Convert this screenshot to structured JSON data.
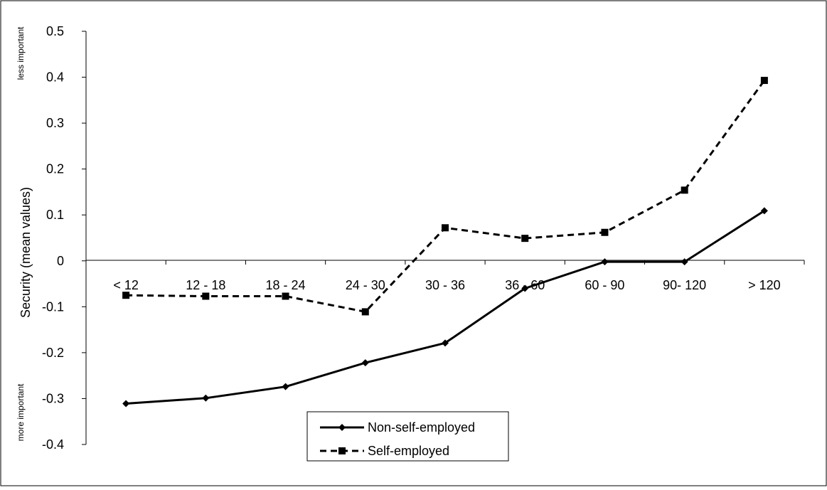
{
  "chart_data": {
    "type": "line",
    "title": "",
    "xlabel": "",
    "ylabel": "Security (mean values)",
    "side_labels": {
      "top": "less important",
      "bottom": "more important"
    },
    "categories": [
      "< 12",
      "12 - 18",
      "18 - 24",
      "24 - 30",
      "30 - 36",
      "36 - 60",
      "60 - 90",
      "90- 120",
      "> 120"
    ],
    "ylim": [
      -0.4,
      0.5
    ],
    "yticks": [
      "0.5",
      "0.4",
      "0.3",
      "0.2",
      "0.1",
      "0",
      "-0.1",
      "-0.2",
      "-0.3",
      "-0.4"
    ],
    "grid": false,
    "legend_position": "bottom-center",
    "series": [
      {
        "name": "Non-self-employed",
        "style": "solid",
        "marker": "diamond",
        "color": "#000000",
        "values": [
          -0.311,
          -0.299,
          -0.274,
          -0.222,
          -0.179,
          -0.06,
          -0.002,
          -0.002,
          0.109
        ]
      },
      {
        "name": "Self-employed",
        "style": "dashed",
        "marker": "square",
        "color": "#000000",
        "values": [
          -0.075,
          -0.077,
          -0.077,
          -0.111,
          0.072,
          0.049,
          0.062,
          0.154,
          0.393
        ]
      }
    ]
  }
}
